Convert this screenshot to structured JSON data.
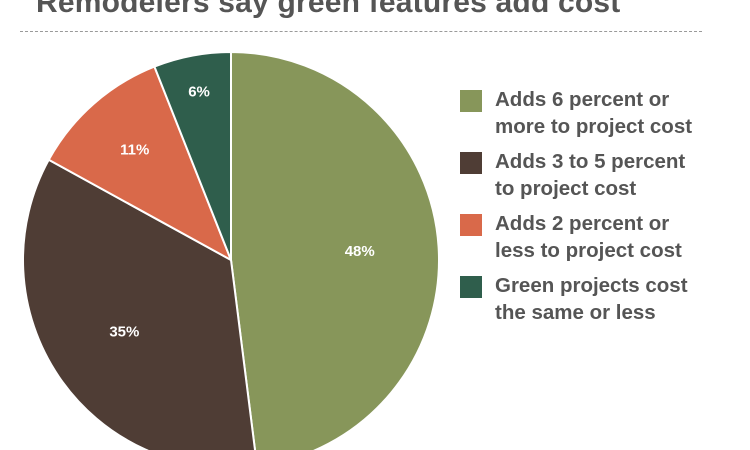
{
  "title": "Remodelers say green features add cost",
  "chart_data": {
    "type": "pie",
    "title": "Remodelers say green features add cost",
    "slices": [
      {
        "label_lines": [
          "Adds 6 percent or",
          "more to project cost"
        ],
        "value": 48,
        "display": "48%",
        "color": "#87965a"
      },
      {
        "label_lines": [
          "Adds 3 to 5 percent",
          "to project cost"
        ],
        "value": 35,
        "display": "35%",
        "color": "#4f3d35"
      },
      {
        "label_lines": [
          "Adds 2 percent or",
          "less to project cost"
        ],
        "value": 11,
        "display": "11%",
        "color": "#d9694a"
      },
      {
        "label_lines": [
          "Green projects cost",
          "the same or less"
        ],
        "value": 6,
        "display": "6%",
        "color": "#2f5e4c"
      }
    ],
    "legend_position": "right",
    "start_angle": "top",
    "direction": "clockwise"
  }
}
